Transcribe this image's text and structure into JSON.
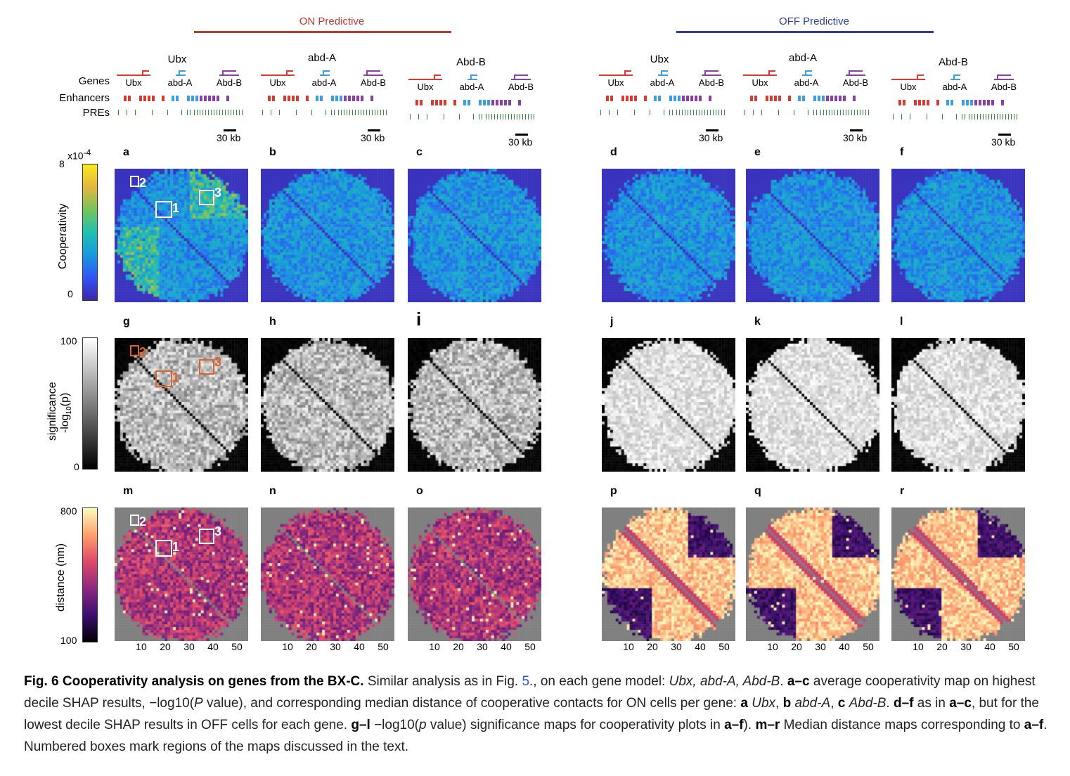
{
  "header": {
    "on_label": "ON Predictive",
    "off_label": "OFF Predictive",
    "on_color": "#c0392b",
    "off_color": "#2c3e9e"
  },
  "gene_titles": [
    "Ubx",
    "abd-A",
    "Abd-B",
    "Ubx",
    "abd-A",
    "Abd-B"
  ],
  "track_labels": {
    "genes": "Genes",
    "enhancers": "Enhancers",
    "pres": "PREs"
  },
  "track_genes": [
    "Ubx",
    "abd-A",
    "Abd-B"
  ],
  "scale_bar": "30 kb",
  "panel_letters": [
    "a",
    "b",
    "c",
    "d",
    "e",
    "f",
    "g",
    "h",
    "i",
    "j",
    "k",
    "l",
    "m",
    "n",
    "o",
    "p",
    "q",
    "r"
  ],
  "colorbars": {
    "cooperativity": {
      "title": "Cooperativity",
      "max": "8",
      "min": "0",
      "exp": "x10",
      "exp_sup": "-4"
    },
    "significance": {
      "title_line1": "significance",
      "title_line2": "-log",
      "title_sub": "10",
      "title_tail": "(p)",
      "max": "100",
      "min": "0"
    },
    "distance": {
      "title": "distance (nm)",
      "max": "800",
      "min": "100"
    }
  },
  "box_numbers": [
    "1",
    "2",
    "3"
  ],
  "x_ticks": [
    "10",
    "20",
    "30",
    "40",
    "50"
  ],
  "caption": {
    "title": "Fig. 6 Cooperativity analysis on genes from the BX-C.",
    "t1": " Similar analysis as in Fig. ",
    "fig_ref": "5",
    "t2": "., on each gene model: ",
    "genes_italic": "Ubx, abd-A, Abd-B",
    "t3": ". ",
    "ac": "a–c",
    "t4": " average cooperativity map on highest decile SHAP results, −log10(",
    "pval_italic": "P",
    "t5": " value), and corresponding median distance of cooperative contacts for ON cells per gene: ",
    "a": "a",
    "ubx": "Ubx",
    "sep1": ", ",
    "b": "b",
    "abda": "abd-A",
    "sep2": ", ",
    "c": "c",
    "abdb": "Abd-B",
    "t6": ". ",
    "df": "d–f",
    "t7": " as in ",
    "ac2": "a–c",
    "t8": ", but for the lowest decile SHAP results in OFF cells for each gene. ",
    "gl": "g–l",
    "t9": " −log10(",
    "p_italic": "p",
    "t10": " value) significance maps for cooperativity plots in ",
    "af": "a–f",
    "t11": "). ",
    "mr": "m–r",
    "t12": " Median distance maps corresponding to ",
    "af2": "a–f",
    "t13": ". Numbered boxes mark regions of the maps discussed in the text."
  }
}
